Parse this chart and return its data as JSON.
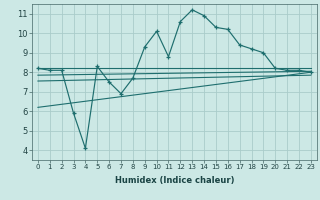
{
  "xlabel": "Humidex (Indice chaleur)",
  "bg_color": "#cce8e5",
  "grid_color": "#aaccca",
  "line_color": "#1e6e6e",
  "xlim": [
    -0.5,
    23.5
  ],
  "ylim": [
    3.5,
    11.5
  ],
  "xticks": [
    0,
    1,
    2,
    3,
    4,
    5,
    6,
    7,
    8,
    9,
    10,
    11,
    12,
    13,
    14,
    15,
    16,
    17,
    18,
    19,
    20,
    21,
    22,
    23
  ],
  "yticks": [
    4,
    5,
    6,
    7,
    8,
    9,
    10,
    11
  ],
  "series1_x": [
    0,
    1,
    2,
    3,
    4,
    5,
    6,
    7,
    8,
    9,
    10,
    11,
    12,
    13,
    14,
    15,
    16,
    17,
    18,
    19,
    20,
    21,
    22,
    23
  ],
  "series1_y": [
    8.2,
    8.1,
    8.1,
    5.9,
    4.1,
    8.3,
    7.5,
    6.9,
    7.7,
    9.3,
    10.1,
    8.8,
    10.6,
    11.2,
    10.9,
    10.3,
    10.2,
    9.4,
    9.2,
    9.0,
    8.2,
    8.1,
    8.1,
    8.0
  ],
  "line2_x": [
    0,
    23
  ],
  "line2_y": [
    8.2,
    8.2
  ],
  "line3_x": [
    0,
    23
  ],
  "line3_y": [
    7.85,
    8.05
  ],
  "line4_x": [
    0,
    23
  ],
  "line4_y": [
    7.55,
    7.85
  ],
  "line5_x": [
    0,
    23
  ],
  "line5_y": [
    6.2,
    8.0
  ]
}
